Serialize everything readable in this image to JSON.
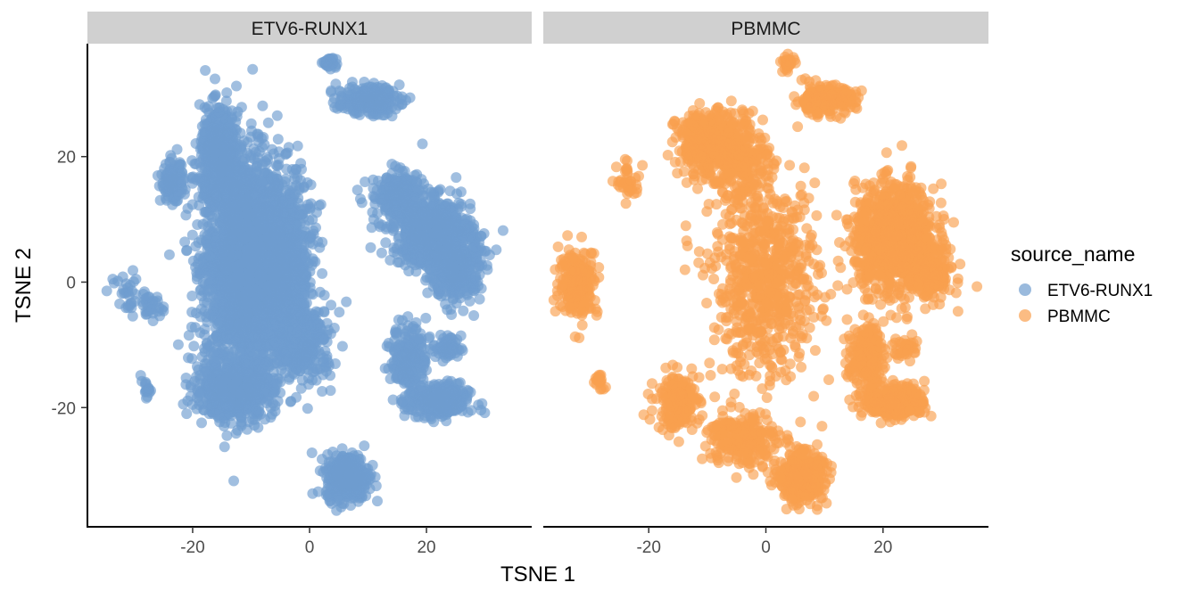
{
  "chart_data": {
    "type": "scatter",
    "facet_variable": "source_name",
    "panels": [
      "ETV6-RUNX1",
      "PBMMC"
    ],
    "xlabel": "TSNE 1",
    "ylabel": "TSNE 2",
    "xlim": [
      -38,
      38
    ],
    "ylim": [
      -39,
      38
    ],
    "x_ticks": [
      -20,
      0,
      20
    ],
    "y_ticks": [
      -20,
      0,
      20
    ],
    "grid": false,
    "legend": {
      "title": "source_name",
      "position": "right",
      "entries": [
        {
          "label": "ETV6-RUNX1",
          "color": "#6f9ccf"
        },
        {
          "label": "PBMMC",
          "color": "#f9a04e"
        }
      ]
    },
    "series": [
      {
        "name": "ETV6-RUNX1",
        "panel": "ETV6-RUNX1",
        "color": "#6f9ccf",
        "clusters": [
          {
            "cx": -11,
            "cy": 3,
            "sx": 4.6,
            "sy": 11.5,
            "n": 2600
          },
          {
            "cx": -15.5,
            "cy": 20,
            "sx": 2.2,
            "sy": 5,
            "n": 500
          },
          {
            "cx": -4,
            "cy": 3,
            "sx": 3.2,
            "sy": 9,
            "n": 700
          },
          {
            "cx": -13,
            "cy": -17,
            "sx": 4.5,
            "sy": 3,
            "n": 600
          },
          {
            "cx": -0.5,
            "cy": -10,
            "sx": 3,
            "sy": 4,
            "n": 250
          },
          {
            "cx": -23.5,
            "cy": 16,
            "sx": 1.3,
            "sy": 2,
            "n": 120
          },
          {
            "cx": 21,
            "cy": 8,
            "sx": 4.5,
            "sy": 3.5,
            "n": 700
          },
          {
            "cx": 25,
            "cy": 2,
            "sx": 2.8,
            "sy": 3.5,
            "n": 350
          },
          {
            "cx": 15,
            "cy": 14,
            "sx": 3,
            "sy": 2.5,
            "n": 200
          },
          {
            "cx": 10,
            "cy": 29,
            "sx": 3.5,
            "sy": 1.5,
            "n": 220
          },
          {
            "cx": 3.5,
            "cy": 35,
            "sx": 0.8,
            "sy": 0.8,
            "n": 30
          },
          {
            "cx": 17,
            "cy": -12,
            "sx": 2,
            "sy": 3.5,
            "n": 200
          },
          {
            "cx": 22,
            "cy": -19,
            "sx": 3.5,
            "sy": 1.8,
            "n": 320
          },
          {
            "cx": 23.5,
            "cy": -10.5,
            "sx": 1.6,
            "sy": 1.3,
            "n": 70
          },
          {
            "cx": 6.5,
            "cy": -31,
            "sx": 2.4,
            "sy": 2.4,
            "n": 420
          },
          {
            "cx": -31,
            "cy": -2,
            "sx": 2,
            "sy": 2.5,
            "n": 35
          },
          {
            "cx": -27,
            "cy": -4,
            "sx": 1.3,
            "sy": 1.3,
            "n": 25
          },
          {
            "cx": -28,
            "cy": -17,
            "sx": 0.6,
            "sy": 0.8,
            "n": 18
          }
        ]
      },
      {
        "name": "PBMMC",
        "panel": "PBMMC",
        "color": "#f9a04e",
        "clusters": [
          {
            "cx": 22,
            "cy": 7,
            "sx": 4.5,
            "sy": 5.5,
            "n": 1100
          },
          {
            "cx": 28,
            "cy": 1,
            "sx": 2.5,
            "sy": 2.5,
            "n": 200
          },
          {
            "cx": -10,
            "cy": 22,
            "sx": 3.5,
            "sy": 3.5,
            "n": 360
          },
          {
            "cx": -4,
            "cy": 20,
            "sx": 3,
            "sy": 5,
            "n": 220
          },
          {
            "cx": 10,
            "cy": 29,
            "sx": 3.5,
            "sy": 1.5,
            "n": 210
          },
          {
            "cx": 3.8,
            "cy": 35,
            "sx": 0.8,
            "sy": 0.8,
            "n": 30
          },
          {
            "cx": -32,
            "cy": 0,
            "sx": 2.2,
            "sy": 3.5,
            "n": 230
          },
          {
            "cx": -23.5,
            "cy": 16,
            "sx": 1.3,
            "sy": 2,
            "n": 40
          },
          {
            "cx": -28.5,
            "cy": -16,
            "sx": 0.7,
            "sy": 1,
            "n": 18
          },
          {
            "cx": 0,
            "cy": 0,
            "sx": 6,
            "sy": 10,
            "n": 700
          },
          {
            "cx": -15,
            "cy": -19,
            "sx": 2.5,
            "sy": 3,
            "n": 180
          },
          {
            "cx": -4,
            "cy": -25,
            "sx": 4,
            "sy": 3,
            "n": 240
          },
          {
            "cx": 6,
            "cy": -31,
            "sx": 2.5,
            "sy": 2.5,
            "n": 400
          },
          {
            "cx": 17,
            "cy": -12,
            "sx": 2,
            "sy": 3.5,
            "n": 200
          },
          {
            "cx": 22,
            "cy": -19,
            "sx": 3.5,
            "sy": 1.8,
            "n": 300
          },
          {
            "cx": 24,
            "cy": -10.5,
            "sx": 1.5,
            "sy": 1.2,
            "n": 40
          }
        ]
      }
    ]
  }
}
